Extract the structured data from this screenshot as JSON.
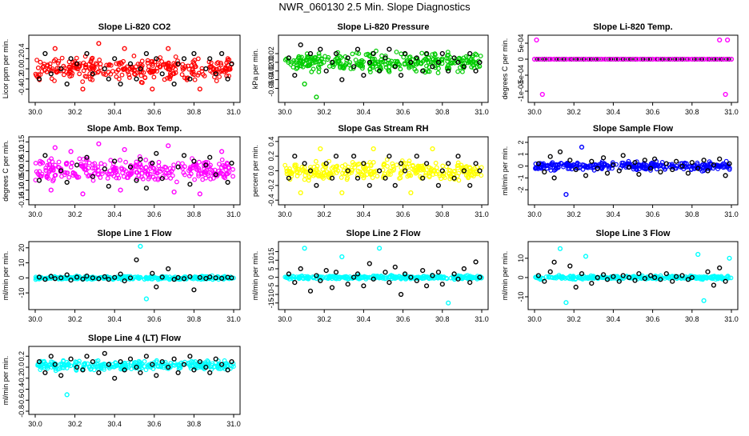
{
  "page": {
    "title": "NWR_060130  2.5 Min. Slope Diagnostics"
  },
  "colors": {
    "axis": "#000000",
    "outlier": "#000000"
  },
  "chart_data": [
    {
      "type": "scatter",
      "title": "Slope Li-820 CO2",
      "ylabel": "Licor ppm per min.",
      "color": "#ff0000",
      "xlim": [
        30.0,
        31.0
      ],
      "ylim": [
        -0.6,
        0.6
      ],
      "yticks": [
        -0.4,
        -0.2,
        0.0,
        0.2,
        0.4
      ],
      "ytick_labels": [
        "-0.4",
        "-0.2",
        "0.0",
        "0.2",
        "0.4"
      ],
      "xticks": [
        30.0,
        30.2,
        30.4,
        30.6,
        30.8,
        31.0
      ],
      "xtick_labels": [
        "30.0",
        "30.2",
        "30.4",
        "30.6",
        "30.8",
        "31.0"
      ],
      "x": [
        30.02,
        30.05,
        30.08,
        30.1,
        30.13,
        30.16,
        30.18,
        30.21,
        30.24,
        30.26,
        30.29,
        30.32,
        30.35,
        30.37,
        30.4,
        30.43,
        30.45,
        30.48,
        30.51,
        30.53,
        30.56,
        30.59,
        30.61,
        30.64,
        30.67,
        30.7,
        30.72,
        30.75,
        30.78,
        30.8,
        30.83,
        30.86,
        30.88,
        30.91,
        30.94,
        30.97,
        30.99
      ],
      "y": [
        -0.2,
        0.3,
        -0.1,
        0.4,
        0.0,
        -0.3,
        0.2,
        0.1,
        -0.4,
        0.3,
        -0.1,
        0.5,
        0.0,
        -0.2,
        0.2,
        -0.3,
        0.4,
        0.1,
        -0.2,
        0.0,
        0.3,
        -0.4,
        0.2,
        -0.1,
        0.4,
        -0.3,
        0.1,
        0.2,
        -0.2,
        0.3,
        -0.4,
        0.0,
        0.2,
        -0.1,
        0.3,
        -0.2,
        0.1
      ]
    },
    {
      "type": "scatter",
      "title": "Slope Li-820 Pressure",
      "ylabel": "kPa per min.",
      "color": "#00cc00",
      "xlim": [
        30.0,
        31.0
      ],
      "ylim": [
        -0.085,
        0.055
      ],
      "yticks": [
        -0.06,
        -0.04,
        -0.02,
        0.0,
        0.02
      ],
      "ytick_labels": [
        "-0.06",
        "-0.04",
        "-0.02",
        "0.00",
        "0.02"
      ],
      "xticks": [
        30.0,
        30.2,
        30.4,
        30.6,
        30.8,
        31.0
      ],
      "xtick_labels": [
        "30.0",
        "30.2",
        "30.4",
        "30.6",
        "30.8",
        "31.0"
      ],
      "x": [
        30.02,
        30.05,
        30.08,
        30.1,
        30.13,
        30.16,
        30.18,
        30.21,
        30.24,
        30.26,
        30.29,
        30.32,
        30.35,
        30.37,
        30.4,
        30.43,
        30.45,
        30.48,
        30.51,
        30.53,
        30.56,
        30.59,
        30.61,
        30.64,
        30.67,
        30.7,
        30.72,
        30.75,
        30.78,
        30.8,
        30.83,
        30.86,
        30.88,
        30.91,
        30.94,
        30.97,
        30.99
      ],
      "y": [
        0.01,
        -0.03,
        0.04,
        -0.05,
        0.02,
        -0.08,
        0.03,
        -0.02,
        0.0,
        0.02,
        -0.04,
        0.01,
        -0.01,
        0.03,
        -0.03,
        0.0,
        0.02,
        -0.02,
        0.01,
        0.03,
        -0.01,
        -0.03,
        0.02,
        0.0,
        0.01,
        -0.02,
        0.02,
        -0.01,
        0.0,
        0.02,
        -0.02,
        0.01,
        0.0,
        -0.01,
        0.02,
        -0.02,
        0.0
      ]
    },
    {
      "type": "scatter",
      "title": "Slope Li-820 Temp.",
      "ylabel": "degrees C per min.",
      "color": "#ff00ff",
      "xlim": [
        30.0,
        31.0
      ],
      "ylim": [
        -0.00125,
        0.00065
      ],
      "yticks": [
        -0.001,
        -0.0005,
        0.0,
        0.0005
      ],
      "ytick_labels": [
        "-1e-03",
        "-5e-04",
        "0",
        "5e-04"
      ],
      "xticks": [
        30.0,
        30.2,
        30.4,
        30.6,
        30.8,
        31.0
      ],
      "xtick_labels": [
        "30.0",
        "30.2",
        "30.4",
        "30.6",
        "30.8",
        "31.0"
      ],
      "x": [
        30.0,
        30.02,
        30.04,
        30.06,
        30.08,
        30.1,
        30.12,
        30.14,
        30.16,
        30.18,
        30.2,
        30.22,
        30.24,
        30.26,
        30.28,
        30.3,
        30.32,
        30.34,
        30.36,
        30.38,
        30.4,
        30.42,
        30.44,
        30.46,
        30.48,
        30.5,
        30.52,
        30.54,
        30.56,
        30.58,
        30.6,
        30.62,
        30.64,
        30.66,
        30.68,
        30.7,
        30.72,
        30.74,
        30.76,
        30.78,
        30.8,
        30.82,
        30.84,
        30.86,
        30.88,
        30.9,
        30.92,
        30.94,
        30.96,
        30.98,
        31.0,
        30.01,
        30.04,
        30.94,
        30.98,
        30.97
      ],
      "y": [
        0,
        0,
        0,
        0,
        0,
        0,
        0,
        0,
        0,
        0,
        0,
        0,
        0,
        0,
        0,
        0,
        0,
        0,
        0,
        0,
        0,
        0,
        0,
        0,
        0,
        0,
        0,
        0,
        0,
        0,
        0,
        0,
        0,
        0,
        0,
        0,
        0,
        0,
        0,
        0,
        0,
        0,
        0,
        0,
        0,
        0,
        0,
        0,
        0,
        0,
        0,
        0.0006,
        -0.0011,
        0.0006,
        0.0006,
        -0.0011
      ]
    },
    {
      "type": "scatter",
      "title": "Slope Amb. Box Temp.",
      "ylabel": "degrees C per min.",
      "color": "#ff00ff",
      "xlim": [
        30.0,
        31.0
      ],
      "ylim": [
        -0.16,
        0.16
      ],
      "yticks": [
        -0.15,
        -0.1,
        -0.05,
        0.0,
        0.05,
        0.1,
        0.15
      ],
      "ytick_labels": [
        "-0.15",
        "-0.10",
        "-0.05",
        "0.00",
        "0.05",
        "0.10",
        "0.15"
      ],
      "xticks": [
        30.0,
        30.2,
        30.4,
        30.6,
        30.8,
        31.0
      ],
      "xtick_labels": [
        "30.0",
        "30.2",
        "30.4",
        "30.6",
        "30.8",
        "31.0"
      ],
      "x": [
        30.02,
        30.05,
        30.08,
        30.1,
        30.13,
        30.16,
        30.18,
        30.21,
        30.24,
        30.26,
        30.29,
        30.32,
        30.35,
        30.37,
        30.4,
        30.43,
        30.45,
        30.48,
        30.51,
        30.53,
        30.56,
        30.59,
        30.61,
        30.64,
        30.67,
        30.7,
        30.72,
        30.75,
        30.78,
        30.8,
        30.83,
        30.86,
        30.88,
        30.91,
        30.94,
        30.97,
        30.99
      ],
      "y": [
        -0.05,
        0.08,
        -0.1,
        0.12,
        0.0,
        -0.06,
        0.1,
        0.03,
        -0.12,
        0.07,
        -0.03,
        0.14,
        0.01,
        -0.08,
        0.05,
        -0.1,
        0.11,
        0.02,
        -0.05,
        0.06,
        -0.09,
        0.04,
        0.09,
        -0.04,
        0.13,
        -0.11,
        0.02,
        0.08,
        -0.07,
        0.05,
        -0.12,
        0.03,
        0.07,
        -0.02,
        0.1,
        -0.06,
        0.04
      ]
    },
    {
      "type": "scatter",
      "title": "Slope Gas Stream RH",
      "ylabel": "percent per min.",
      "color": "#ffff00",
      "xlim": [
        30.0,
        31.0
      ],
      "ylim": [
        -0.42,
        0.42
      ],
      "yticks": [
        -0.4,
        -0.2,
        0.0,
        0.2,
        0.4
      ],
      "ytick_labels": [
        "-0.4",
        "-0.2",
        "0.0",
        "0.2",
        "0.4"
      ],
      "xticks": [
        30.0,
        30.2,
        30.4,
        30.6,
        30.8,
        31.0
      ],
      "xtick_labels": [
        "30.0",
        "30.2",
        "30.4",
        "30.6",
        "30.8",
        "31.0"
      ],
      "x": [
        30.02,
        30.05,
        30.08,
        30.1,
        30.13,
        30.16,
        30.18,
        30.21,
        30.24,
        30.26,
        30.29,
        30.32,
        30.35,
        30.37,
        30.4,
        30.43,
        30.45,
        30.48,
        30.51,
        30.53,
        30.56,
        30.59,
        30.61,
        30.64,
        30.67,
        30.7,
        30.72,
        30.75,
        30.78,
        30.8,
        30.83,
        30.86,
        30.88,
        30.91,
        30.94,
        30.97,
        30.99
      ],
      "y": [
        -0.1,
        0.2,
        -0.3,
        0.1,
        0.0,
        -0.2,
        0.3,
        0.1,
        -0.1,
        0.2,
        -0.3,
        0.0,
        0.2,
        -0.1,
        0.1,
        -0.2,
        0.3,
        0.0,
        -0.1,
        0.2,
        -0.2,
        0.1,
        0.0,
        -0.3,
        0.2,
        -0.1,
        0.1,
        0.3,
        -0.2,
        0.0,
        0.1,
        -0.1,
        0.2,
        0.0,
        -0.2,
        0.1,
        0.0
      ]
    },
    {
      "type": "scatter",
      "title": "Slope Sample Flow",
      "ylabel": "ml/min per min.",
      "color": "#0000ff",
      "xlim": [
        30.0,
        31.0
      ],
      "ylim": [
        -3.0,
        2.2
      ],
      "yticks": [
        -2,
        -1,
        0,
        1,
        2
      ],
      "ytick_labels": [
        "-2",
        "-1",
        "0",
        "1",
        "2"
      ],
      "xticks": [
        30.0,
        30.2,
        30.4,
        30.6,
        30.8,
        31.0
      ],
      "xtick_labels": [
        "30.0",
        "30.2",
        "30.4",
        "30.6",
        "30.8",
        "31.0"
      ],
      "x": [
        30.02,
        30.05,
        30.08,
        30.1,
        30.13,
        30.16,
        30.18,
        30.21,
        30.24,
        30.26,
        30.29,
        30.32,
        30.35,
        30.37,
        30.4,
        30.43,
        30.45,
        30.48,
        30.51,
        30.53,
        30.56,
        30.59,
        30.61,
        30.64,
        30.67,
        30.7,
        30.72,
        30.75,
        30.78,
        30.8,
        30.83,
        30.86,
        30.88,
        30.91,
        30.94,
        30.97,
        30.99
      ],
      "y": [
        0.2,
        -0.5,
        0.8,
        -1.0,
        1.2,
        -2.4,
        0.5,
        -0.3,
        1.6,
        -0.8,
        0.4,
        -0.2,
        0.7,
        -0.6,
        0.1,
        -0.4,
        0.9,
        -0.1,
        0.3,
        -0.7,
        0.5,
        -0.2,
        0.6,
        -0.5,
        0.2,
        -0.3,
        0.4,
        0.0,
        -0.6,
        0.3,
        -0.2,
        0.5,
        -0.4,
        0.1,
        0.6,
        -0.8,
        0.2
      ]
    },
    {
      "type": "scatter",
      "title": "Slope Line 1 Flow",
      "ylabel": "ml/min per min.",
      "color": "#00ffff",
      "xlim": [
        30.0,
        31.0
      ],
      "ylim": [
        -19,
        22
      ],
      "yticks": [
        -10,
        0,
        10,
        20
      ],
      "ytick_labels": [
        "-10",
        "0",
        "10",
        "20"
      ],
      "xticks": [
        30.0,
        30.2,
        30.4,
        30.6,
        30.8,
        31.0
      ],
      "xtick_labels": [
        "30.0",
        "30.2",
        "30.4",
        "30.6",
        "30.8",
        "31.0"
      ],
      "x": [
        30.02,
        30.05,
        30.08,
        30.1,
        30.13,
        30.16,
        30.18,
        30.21,
        30.24,
        30.26,
        30.29,
        30.32,
        30.35,
        30.37,
        30.4,
        30.43,
        30.45,
        30.48,
        30.51,
        30.53,
        30.56,
        30.59,
        30.61,
        30.64,
        30.67,
        30.7,
        30.72,
        30.75,
        30.78,
        30.8,
        30.83,
        30.86,
        30.88,
        30.91,
        30.94,
        30.97,
        30.99
      ],
      "y": [
        0.5,
        -1.0,
        1.0,
        -0.5,
        0.0,
        2.0,
        -1.5,
        0.5,
        -0.8,
        1.2,
        0.0,
        -0.6,
        0.8,
        -1.0,
        0.3,
        2.5,
        -2.0,
        0.0,
        12.0,
        21.0,
        -14.0,
        3.0,
        -6.0,
        0.5,
        6.0,
        -1.0,
        0.2,
        -0.5,
        0.8,
        -8.0,
        0.3,
        -0.4,
        0.6,
        0.0,
        -0.3,
        0.4,
        0.0
      ]
    },
    {
      "type": "scatter",
      "title": "Slope Line 2 Flow",
      "ylabel": "ml/min per min.",
      "color": "#00ffff",
      "xlim": [
        30.0,
        31.0
      ],
      "ylim": [
        -17,
        19
      ],
      "yticks": [
        -15,
        -10,
        -5,
        0,
        5,
        10,
        15
      ],
      "ytick_labels": [
        "-15",
        "-10",
        "-5",
        "0",
        "5",
        "10",
        "15"
      ],
      "xticks": [
        30.0,
        30.2,
        30.4,
        30.6,
        30.8,
        31.0
      ],
      "xtick_labels": [
        "30.0",
        "30.2",
        "30.4",
        "30.6",
        "30.8",
        "31.0"
      ],
      "x": [
        30.02,
        30.05,
        30.08,
        30.1,
        30.13,
        30.16,
        30.18,
        30.21,
        30.24,
        30.26,
        30.29,
        30.32,
        30.35,
        30.37,
        30.4,
        30.43,
        30.45,
        30.48,
        30.51,
        30.53,
        30.56,
        30.59,
        30.61,
        30.64,
        30.67,
        30.7,
        30.72,
        30.75,
        30.78,
        30.8,
        30.83,
        30.86,
        30.88,
        30.91,
        30.94,
        30.97,
        30.99
      ],
      "y": [
        2.0,
        -3.0,
        5.0,
        17.0,
        -8.0,
        1.0,
        -2.0,
        4.0,
        -6.0,
        3.0,
        12.0,
        -4.0,
        0.0,
        2.0,
        -5.0,
        8.0,
        -1.0,
        17.0,
        3.0,
        -3.0,
        6.0,
        -10.0,
        2.0,
        0.0,
        -2.0,
        4.0,
        -5.0,
        1.0,
        3.0,
        -4.0,
        -15.0,
        2.0,
        -1.0,
        5.0,
        -3.0,
        9.0,
        0.0
      ]
    },
    {
      "type": "scatter",
      "title": "Slope Line 3 Flow",
      "ylabel": "ml/min per min.",
      "color": "#00ffff",
      "xlim": [
        30.0,
        31.0
      ],
      "ylim": [
        -15,
        17
      ],
      "yticks": [
        -10,
        0,
        10
      ],
      "ytick_labels": [
        "-10",
        "0",
        "10"
      ],
      "xticks": [
        30.0,
        30.2,
        30.4,
        30.6,
        30.8,
        31.0
      ],
      "xtick_labels": [
        "30.0",
        "30.2",
        "30.4",
        "30.6",
        "30.8",
        "31.0"
      ],
      "x": [
        30.02,
        30.05,
        30.08,
        30.1,
        30.13,
        30.16,
        30.18,
        30.21,
        30.24,
        30.26,
        30.29,
        30.32,
        30.35,
        30.37,
        30.4,
        30.43,
        30.45,
        30.48,
        30.51,
        30.53,
        30.56,
        30.59,
        30.61,
        30.64,
        30.67,
        30.7,
        30.72,
        30.75,
        30.78,
        30.8,
        30.83,
        30.86,
        30.88,
        30.91,
        30.94,
        30.97,
        30.99
      ],
      "y": [
        1.0,
        -2.0,
        3.0,
        8.0,
        15.0,
        -13.0,
        6.0,
        -5.0,
        2.0,
        11.0,
        -3.0,
        0.0,
        1.5,
        -1.0,
        0.5,
        -2.0,
        1.0,
        0.0,
        -1.5,
        2.0,
        -0.5,
        1.0,
        0.0,
        -1.0,
        2.0,
        -2.0,
        0.5,
        1.0,
        -1.0,
        0.0,
        12.0,
        -12.0,
        3.0,
        -4.0,
        5.0,
        -2.0,
        10.0
      ]
    },
    {
      "type": "scatter",
      "title": "Slope Line 4 (LT) Flow",
      "ylabel": "ml/min per min.",
      "color": "#00ffff",
      "xlim": [
        30.0,
        31.0
      ],
      "ylim": [
        -0.8,
        0.32
      ],
      "yticks": [
        -0.8,
        -0.6,
        -0.4,
        -0.2,
        0.0,
        0.2
      ],
      "ytick_labels": [
        "-0.8",
        "-0.6",
        "-0.4",
        "-0.2",
        "0.0",
        "0.2"
      ],
      "xticks": [
        30.0,
        30.2,
        30.4,
        30.6,
        30.8,
        31.0
      ],
      "xtick_labels": [
        "30.0",
        "30.2",
        "30.4",
        "30.6",
        "30.8",
        "31.0"
      ],
      "x": [
        30.02,
        30.05,
        30.08,
        30.1,
        30.13,
        30.16,
        30.18,
        30.21,
        30.24,
        30.26,
        30.29,
        30.32,
        30.35,
        30.37,
        30.4,
        30.43,
        30.45,
        30.48,
        30.51,
        30.53,
        30.56,
        30.59,
        30.61,
        30.64,
        30.67,
        30.7,
        30.72,
        30.75,
        30.78,
        30.8,
        30.83,
        30.86,
        30.88,
        30.91,
        30.94,
        30.97,
        30.99
      ],
      "y": [
        0.1,
        -0.1,
        0.2,
        0.05,
        -0.15,
        -0.5,
        0.15,
        0.0,
        -0.05,
        0.2,
        0.1,
        -0.1,
        0.25,
        0.05,
        -0.2,
        0.1,
        -0.05,
        0.15,
        0.0,
        -0.1,
        0.2,
        0.05,
        -0.15,
        0.1,
        0.0,
        0.15,
        -0.1,
        0.05,
        0.2,
        -0.05,
        0.1,
        0.0,
        -0.1,
        0.15,
        0.05,
        -0.05,
        0.1
      ]
    }
  ]
}
